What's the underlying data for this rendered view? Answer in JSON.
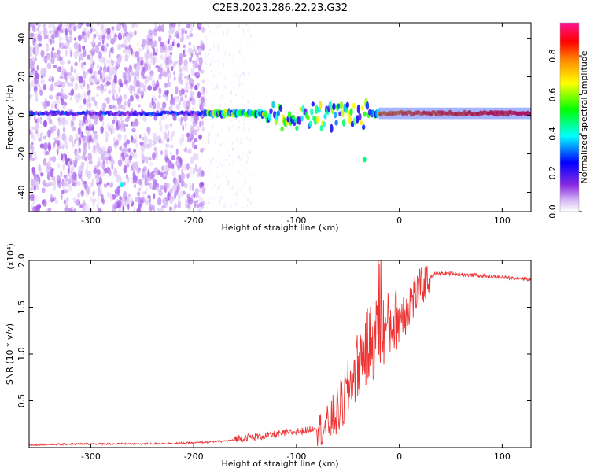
{
  "chart_data": [
    {
      "type": "heatmap",
      "title": "C2E3.2023.286.22.23.G32",
      "xlabel": "Height of straight line (km)",
      "ylabel": "Frequency (Hz)",
      "xlim": [
        -360,
        128
      ],
      "ylim": [
        -50,
        48
      ],
      "xticks": [
        -300,
        -200,
        -100,
        0,
        100
      ],
      "yticks": [
        -40,
        -20,
        0,
        20,
        40
      ],
      "colorbar": {
        "label": "Normalized spectral amplitude",
        "range": [
          0,
          0.97
        ],
        "ticks": [
          0.0,
          0.2,
          0.4,
          0.6,
          0.8
        ],
        "colormap": [
          "#ffffff",
          "#d6b8f5",
          "#8a2be2",
          "#0000ff",
          "#00ffff",
          "#00ff00",
          "#ffff00",
          "#ff8c00",
          "#ff0000",
          "#ff1493"
        ]
      },
      "features": [
        {
          "description": "broadband scattered signal",
          "x_range": [
            -360,
            -190
          ],
          "y_range": [
            -50,
            48
          ],
          "amplitude": 0.15
        },
        {
          "description": "weaker scatter",
          "x_range": [
            -190,
            -145
          ],
          "y_range": [
            -50,
            48
          ],
          "amplitude": 0.05
        },
        {
          "description": "signal band near 0 Hz",
          "x_range": [
            -360,
            128
          ],
          "y": 1,
          "amplitude_end": 0.85
        },
        {
          "description": "isolated feature",
          "x": -270,
          "y": -36,
          "amplitude": 0.45
        },
        {
          "description": "isolated feature",
          "x": -34,
          "y": -23,
          "amplitude": 0.5
        }
      ]
    },
    {
      "type": "line",
      "xlabel": "Height of straight line (km)",
      "ylabel": "SNR (10 * v/v)",
      "y_multiplier": "(x10⁴)",
      "xlim": [
        -360,
        128
      ],
      "ylim": [
        0,
        2.0
      ],
      "xticks": [
        -300,
        -200,
        -100,
        0,
        100
      ],
      "yticks": [
        0.5,
        1.0,
        1.5,
        2.0
      ],
      "yticklabels": [
        "0.5",
        "1.0",
        "1.5",
        "2.0"
      ],
      "color": "#ee3333",
      "series": [
        {
          "x": [
            -360,
            -300,
            -250,
            -200,
            -170,
            -150,
            -130,
            -110,
            -90,
            -70,
            -55,
            -45,
            -35,
            -25,
            -15,
            -5,
            5,
            15,
            25,
            35,
            50,
            75,
            100,
            128
          ],
          "values": [
            0.03,
            0.04,
            0.04,
            0.05,
            0.07,
            0.09,
            0.11,
            0.14,
            0.17,
            0.25,
            0.5,
            0.8,
            1.05,
            1.2,
            1.3,
            1.38,
            1.5,
            1.65,
            1.78,
            1.86,
            1.86,
            1.84,
            1.82,
            1.8
          ]
        }
      ]
    }
  ]
}
